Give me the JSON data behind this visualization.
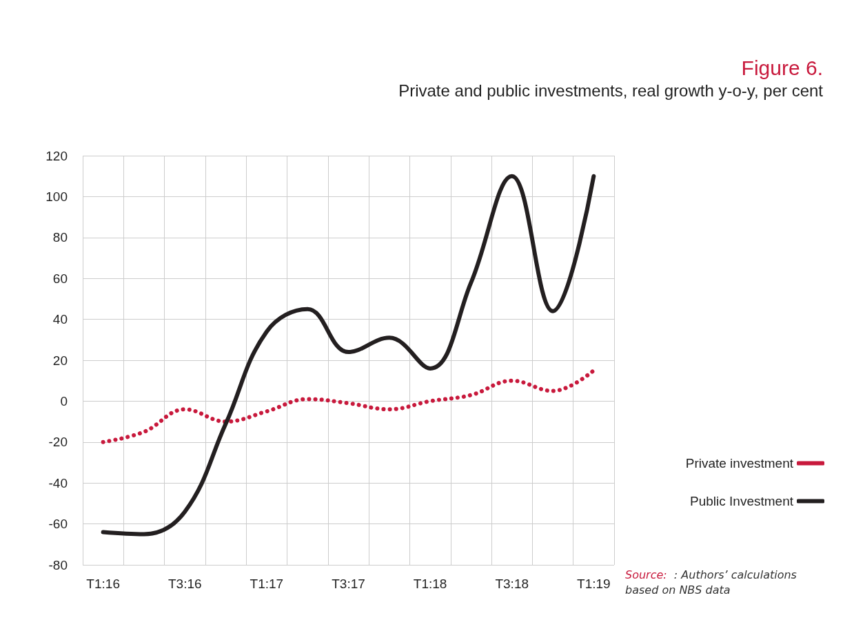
{
  "chart_data": {
    "type": "line",
    "title": "Figure 6.",
    "subtitle": "Private and public investments, real growth y-o-y, per cent",
    "categories": [
      "T1:16",
      null,
      "T3:16",
      null,
      "T1:17",
      null,
      "T3:17",
      null,
      "T1:18",
      null,
      "T3:18",
      null,
      "T1:19"
    ],
    "series": [
      {
        "name": "Private investment",
        "color": "#c8193c",
        "line_style": "dotted",
        "values": [
          -20,
          -15,
          -4,
          -10,
          -5,
          1,
          -1,
          -4,
          0,
          3,
          10,
          5,
          15
        ]
      },
      {
        "name": "Public Investment",
        "color": "#231f20",
        "line_style": "solid",
        "values": [
          -64,
          -65,
          -54,
          -11,
          34,
          45,
          24,
          31,
          16,
          58,
          110,
          44,
          110
        ]
      }
    ],
    "ylim": [
      -80,
      120
    ],
    "yticks": [
      -80,
      -60,
      -40,
      -20,
      0,
      20,
      40,
      60,
      80,
      100,
      120
    ],
    "grid": true,
    "legend": "right",
    "marker": "none",
    "annotations": [
      "Source:  : Authors’ calculations based on NBS data"
    ]
  }
}
